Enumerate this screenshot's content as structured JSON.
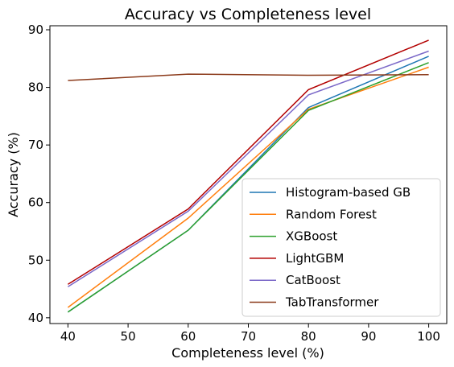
{
  "chart_data": {
    "type": "line",
    "title": "Accuracy vs Completeness level",
    "xlabel": "Completeness level (%)",
    "ylabel": "Accuracy (%)",
    "xlim": [
      37,
      103
    ],
    "ylim": [
      39,
      90.7
    ],
    "xticks": [
      40,
      50,
      60,
      70,
      80,
      90,
      100
    ],
    "yticks": [
      40,
      50,
      60,
      70,
      80,
      90
    ],
    "grid": false,
    "legend_position": "lower-right",
    "x": [
      40,
      60,
      80,
      100
    ],
    "series": [
      {
        "name": "Histogram-based GB",
        "color": "#1f77b4",
        "values": [
          41.0,
          55.2,
          76.5,
          85.4
        ]
      },
      {
        "name": "Random Forest",
        "color": "#ff7f0e",
        "values": [
          41.8,
          57.3,
          76.2,
          83.5
        ]
      },
      {
        "name": "XGBoost",
        "color": "#2ca02c",
        "values": [
          41.0,
          55.2,
          76.0,
          84.3
        ]
      },
      {
        "name": "LightGBM",
        "color": "#b30000",
        "values": [
          45.8,
          58.9,
          79.6,
          88.2
        ]
      },
      {
        "name": "CatBoost",
        "color": "#7b68c8",
        "values": [
          45.4,
          58.5,
          78.7,
          86.3
        ]
      },
      {
        "name": "TabTransformer",
        "color": "#8b3a1a",
        "values": [
          81.2,
          82.3,
          82.1,
          82.2
        ]
      }
    ]
  }
}
